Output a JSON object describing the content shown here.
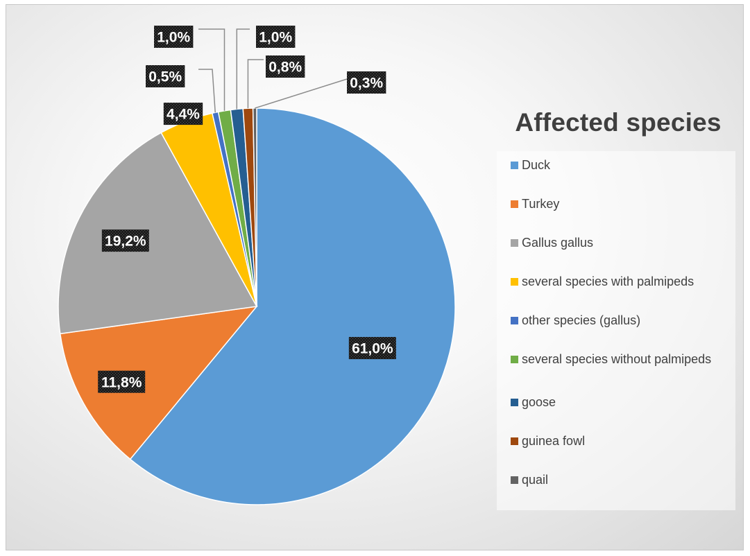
{
  "chart_data": {
    "type": "pie",
    "title": "Affected species",
    "legend_position": "right",
    "slices": [
      {
        "name": "Duck",
        "value": 61.0,
        "label": "61,0%",
        "color": "#5B9BD5"
      },
      {
        "name": "Turkey",
        "value": 11.8,
        "label": "11,8%",
        "color": "#ED7D31"
      },
      {
        "name": "Gallus gallus",
        "value": 19.2,
        "label": "19,2%",
        "color": "#A5A5A5"
      },
      {
        "name": "several species with palmipeds",
        "value": 4.4,
        "label": "4,4%",
        "color": "#FFC000"
      },
      {
        "name": "other species (gallus)",
        "value": 0.5,
        "label": "0,5%",
        "color": "#4472C4"
      },
      {
        "name": "several species without palmipeds",
        "value": 1.0,
        "label": "1,0%",
        "color": "#70AD47"
      },
      {
        "name": "goose",
        "value": 1.0,
        "label": "1,0%",
        "color": "#255E91"
      },
      {
        "name": "guinea fowl",
        "value": 0.8,
        "label": "0,8%",
        "color": "#9E480E"
      },
      {
        "name": "quail",
        "value": 0.3,
        "label": "0,3%",
        "color": "#636363"
      }
    ]
  }
}
